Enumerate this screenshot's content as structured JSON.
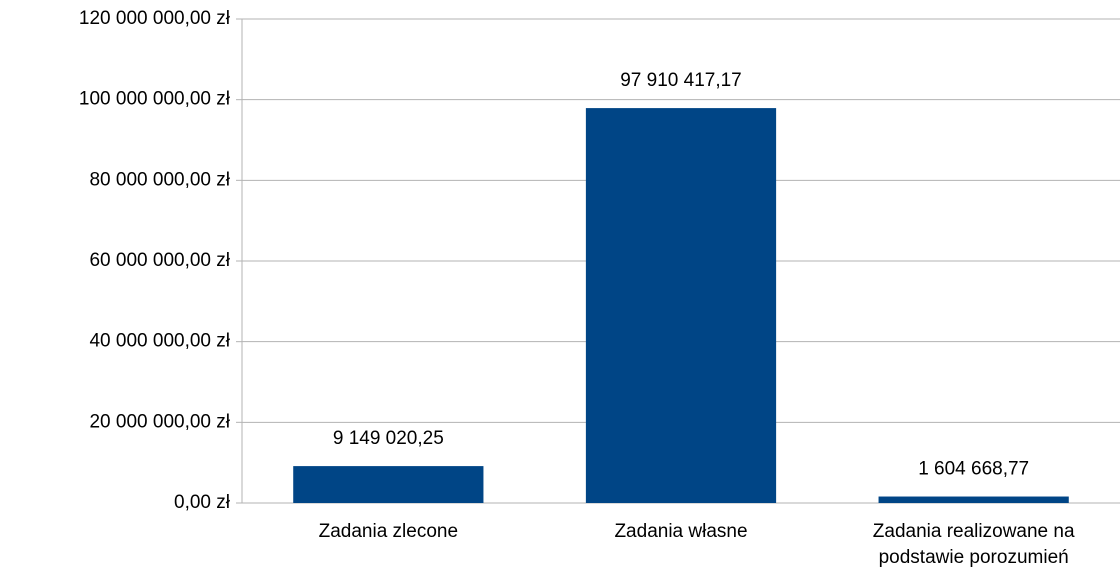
{
  "chart_data": {
    "type": "bar",
    "categories": [
      "Zadania zlecone",
      "Zadania własne",
      "Zadania realizowane na podstawie porozumień"
    ],
    "values": [
      9149020.25,
      97910417.17,
      1604668.77
    ],
    "value_labels": [
      "9 149 020,25",
      "97 910 417,17",
      "1 604 668,77"
    ],
    "color": "#004586",
    "ylim": [
      0,
      120000000
    ],
    "yticks": [
      {
        "value": 0,
        "label": "0,00 zł"
      },
      {
        "value": 20000000,
        "label": "20 000 000,00 zł"
      },
      {
        "value": 40000000,
        "label": "40 000 000,00 zł"
      },
      {
        "value": 60000000,
        "label": "60 000 000,00 zł"
      },
      {
        "value": 80000000,
        "label": "80 000 000,00 zł"
      },
      {
        "value": 100000000,
        "label": "100 000 000,00 zł"
      },
      {
        "value": 120000000,
        "label": "120 000 000,00 zł"
      }
    ],
    "grid": true
  }
}
